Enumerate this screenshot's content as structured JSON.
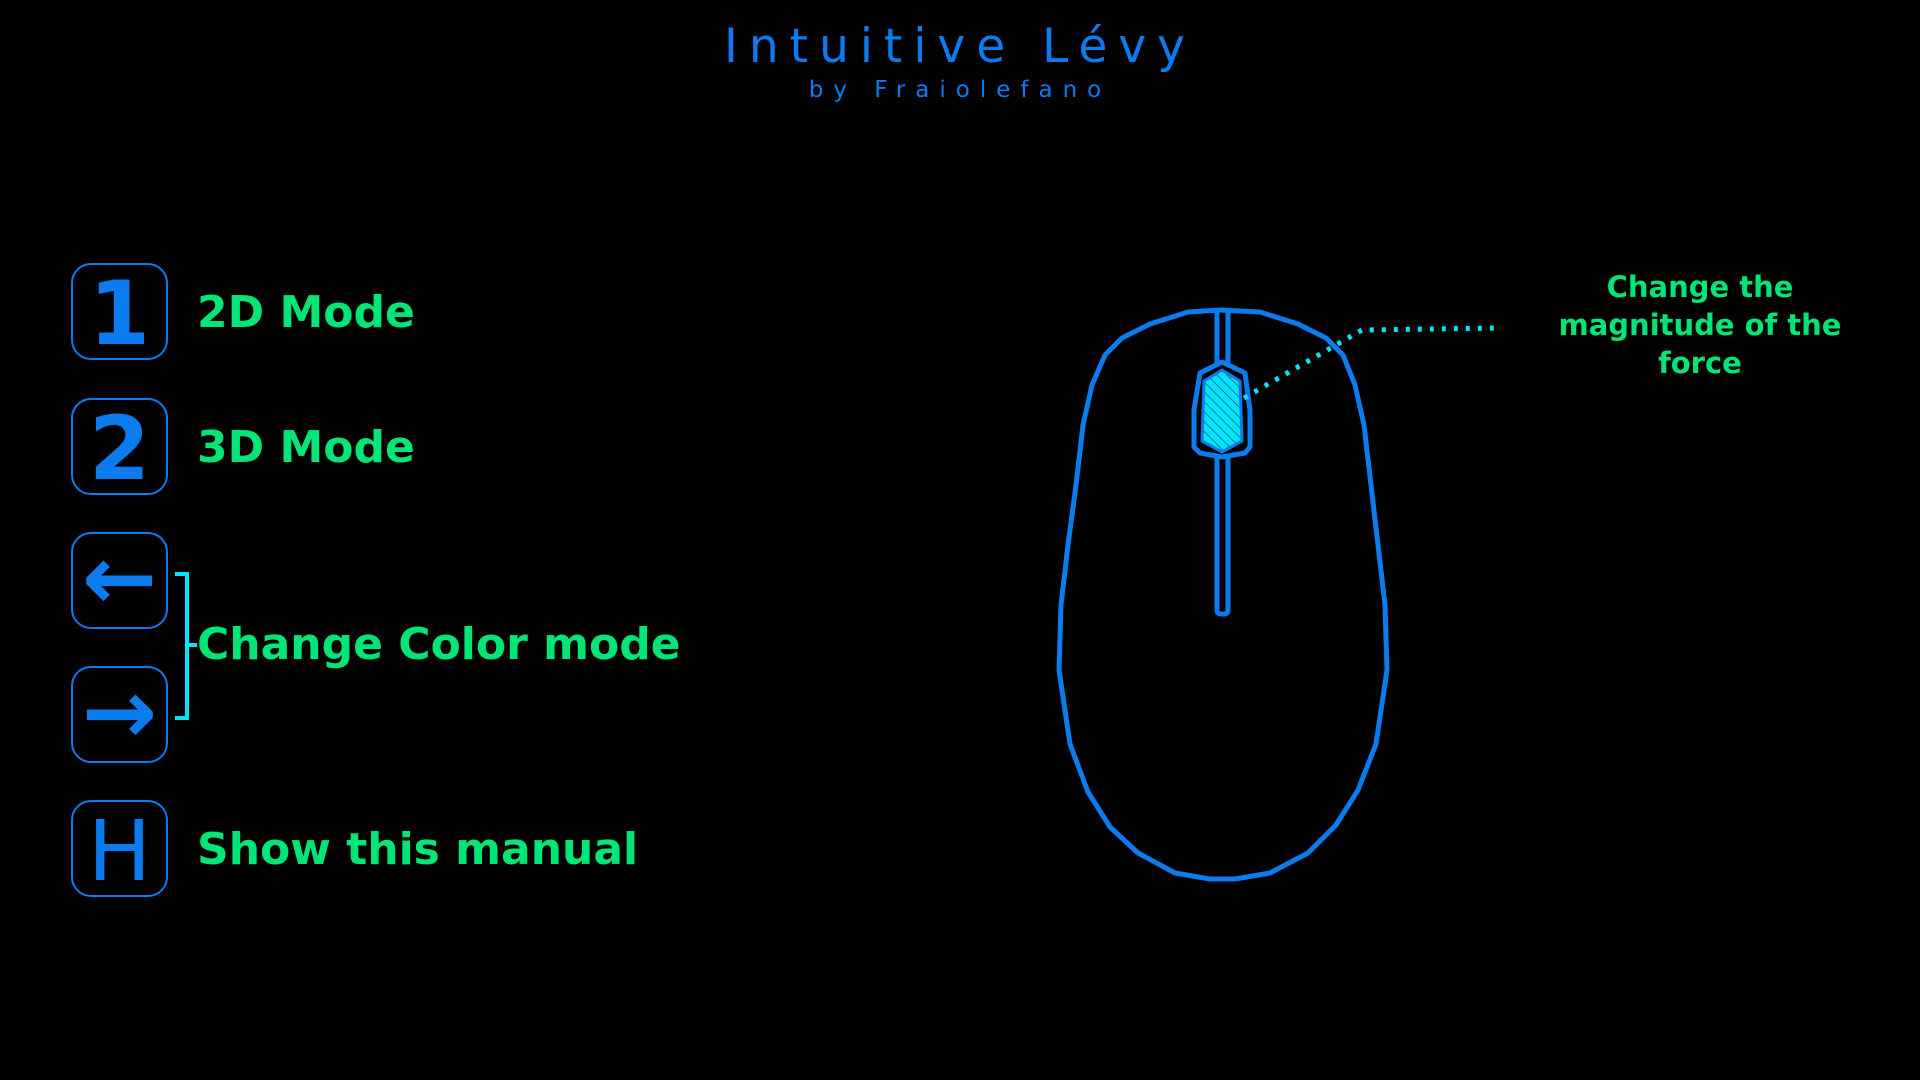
{
  "header": {
    "title": "Intuitive Lévy",
    "subtitle": "by Fraiolefano"
  },
  "controls": [
    {
      "key": "1",
      "key_icon": "digit-one-key",
      "label": "2D Mode"
    },
    {
      "key": "2",
      "key_icon": "digit-two-key",
      "label": "3D Mode"
    },
    {
      "key": "←",
      "key_icon": "arrow-left-key"
    },
    {
      "key": "→",
      "key_icon": "arrow-right-key"
    },
    {
      "key": "H",
      "key_icon": "letter-h-key",
      "label": "Show this manual"
    }
  ],
  "color_mode": {
    "label": "Change Color mode"
  },
  "mouse": {
    "icon": "mouse-icon",
    "wheel_icon": "scroll-wheel-icon",
    "annotation_lines": [
      "Change the",
      "magnitude of the",
      "force"
    ]
  },
  "colors": {
    "background": "#000000",
    "accent_blue": "#0a7cf0",
    "label_green": "#00e676",
    "highlight_cyan": "#00e5ff"
  }
}
